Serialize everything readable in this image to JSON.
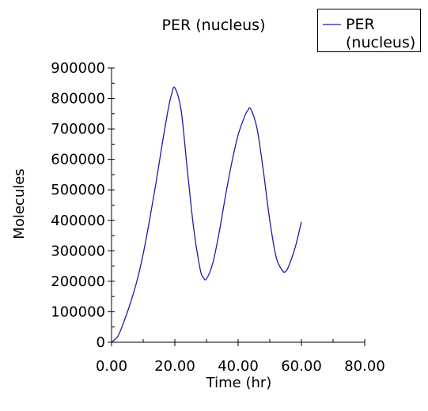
{
  "chart_data": {
    "type": "line",
    "title": "PER (nucleus)",
    "xlabel": "Time (hr)",
    "ylabel": "Molecules",
    "xlim": [
      0,
      80
    ],
    "ylim": [
      0,
      900000
    ],
    "xticks": [
      "0.00",
      "20.00",
      "40.00",
      "60.00",
      "80.00"
    ],
    "yticks": [
      "0",
      "100000",
      "200000",
      "300000",
      "400000",
      "500000",
      "600000",
      "700000",
      "800000",
      "900000"
    ],
    "grid": false,
    "legend_position": "top-right",
    "legend_label_lines": [
      "PER",
      "(nucleus)"
    ],
    "line_color": "#1c1ca8",
    "series": [
      {
        "name": "PER (nucleus)",
        "x": [
          0,
          2,
          4,
          6,
          8,
          10,
          12,
          14,
          16,
          18,
          19,
          20,
          22,
          24,
          26,
          28,
          29,
          30,
          32,
          34,
          36,
          38,
          40,
          42,
          43,
          44,
          46,
          48,
          50,
          52,
          54,
          55,
          56,
          58,
          60
        ],
        "y": [
          0,
          20000,
          70000,
          130000,
          200000,
          290000,
          400000,
          520000,
          650000,
          770000,
          815000,
          835000,
          760000,
          560000,
          370000,
          240000,
          213000,
          208000,
          260000,
          360000,
          480000,
          590000,
          680000,
          740000,
          760000,
          765000,
          700000,
          560000,
          400000,
          280000,
          235000,
          232000,
          250000,
          310000,
          395000
        ]
      }
    ]
  }
}
